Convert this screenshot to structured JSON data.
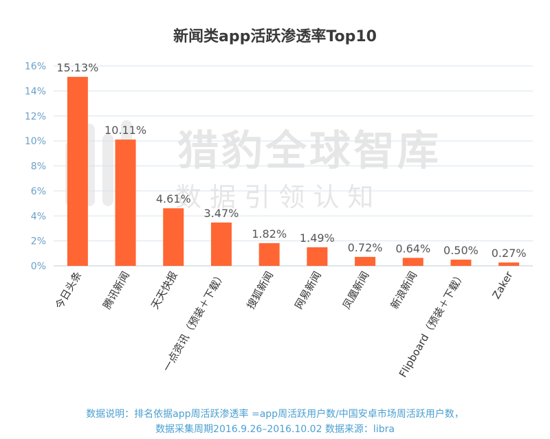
{
  "watermark": {
    "brand": "猎豹全球智库",
    "slogan": "数 据 引 领 认 知"
  },
  "chart_data": {
    "type": "bar",
    "title": "新闻类app活跃渗透率Top10",
    "xlabel": "",
    "ylabel": "",
    "ylim": [
      0,
      16
    ],
    "yticks": [
      "0%",
      "2%",
      "4%",
      "6%",
      "8%",
      "10%",
      "12%",
      "14%",
      "16%"
    ],
    "grid": true,
    "bar_color": "#ff6633",
    "categories": [
      "今日头条",
      "腾讯新闻",
      "天天快报",
      "一点资讯（预装＋下载）",
      "搜狐新闻",
      "网易新闻",
      "凤凰新闻",
      "新浪新闻",
      "Flipboard（预装＋下载）",
      "Zaker"
    ],
    "values": [
      15.13,
      10.11,
      4.61,
      3.47,
      1.82,
      1.49,
      0.72,
      0.64,
      0.5,
      0.27
    ],
    "data_labels": [
      "15.13%",
      "10.11%",
      "4.61%",
      "3.47%",
      "1.82%",
      "1.49%",
      "0.72%",
      "0.64%",
      "0.50%",
      "0.27%"
    ]
  },
  "footnote": {
    "line1": "数据说明：排名依据app周活跃渗透率  =app周活跃用户数/中国安卓市场周活跃用户数，",
    "line2": "数据采集周期2016.9.26–2016.10.02 数据来源：libra"
  }
}
